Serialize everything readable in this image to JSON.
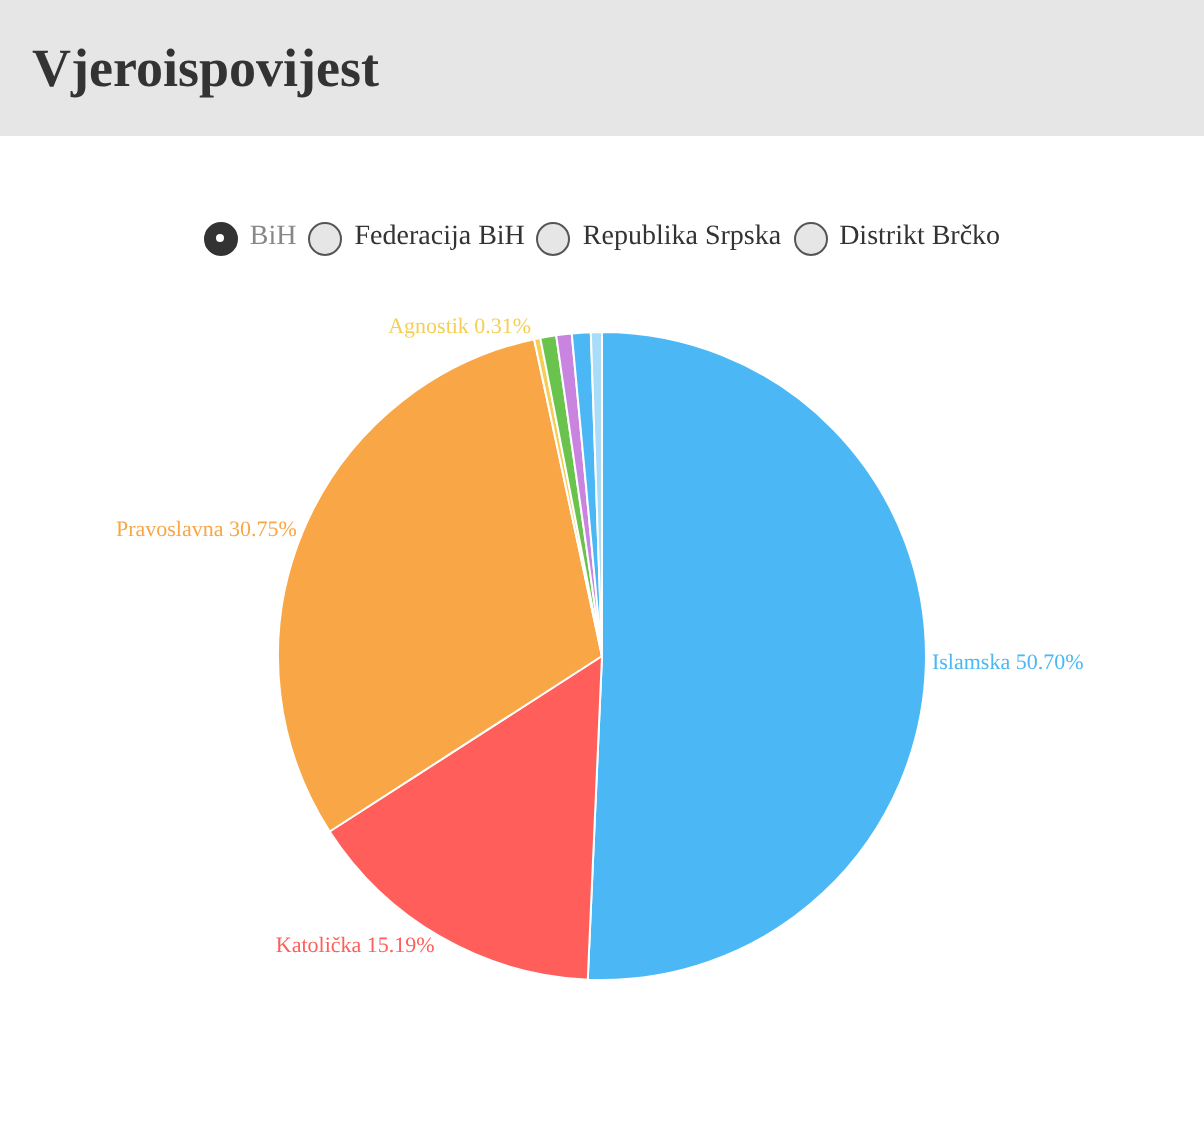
{
  "chart_data": {
    "type": "pie",
    "title": "Vjeroispovijest",
    "annotations": [
      "BiH",
      "Federacija BiH",
      "Republika Srpska",
      "Distrikt Brčko"
    ],
    "categories": [
      "Islamska",
      "Katolička",
      "Pravoslavna",
      "Agnostik",
      null,
      null,
      null,
      null
    ],
    "values": [
      50.7,
      15.19,
      30.75,
      0.31,
      0.79,
      0.77,
      0.94,
      0.55
    ],
    "value_labels": [
      "50.70%",
      "15.19%",
      "30.75%",
      "0.31%",
      null,
      null,
      null,
      null
    ],
    "colors": [
      "#4bb8f5",
      "#ff5e5a",
      "#f9a646",
      "#f5cf55",
      "#6ac34d",
      "#c984e0",
      "#4bb8f5",
      "#a8dcf8"
    ],
    "legend": false
  }
}
